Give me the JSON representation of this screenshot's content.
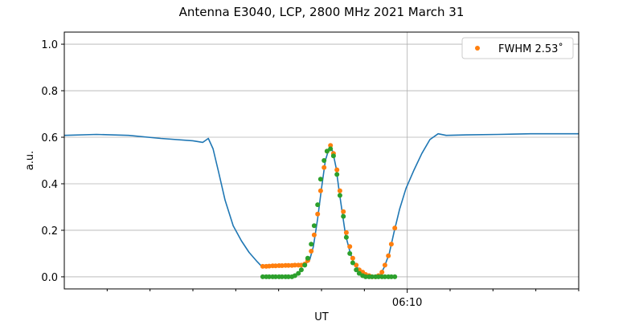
{
  "chart_data": {
    "type": "line",
    "title": "Antenna E3040, LCP, 2800 MHz 2021 March 31",
    "xlabel": "UT",
    "ylabel": "a.u.",
    "xlim_minutes_after_0600": [
      2,
      14
    ],
    "ylim": [
      -0.052,
      1.052
    ],
    "x_major_ticks": [
      {
        "value": 10,
        "label": "06:10"
      }
    ],
    "x_minor_ticks": [
      3,
      4,
      5,
      6,
      7,
      8,
      9,
      11,
      12,
      13,
      14
    ],
    "y_ticks": [
      {
        "value": 0,
        "label": "0.0"
      },
      {
        "value": 0.2,
        "label": "0.2"
      },
      {
        "value": 0.4,
        "label": "0.4"
      },
      {
        "value": 0.6,
        "label": "0.6"
      },
      {
        "value": 0.8,
        "label": "0.8"
      },
      {
        "value": 1.0,
        "label": "1.0"
      }
    ],
    "grid": true,
    "legend": {
      "placement": "top-right",
      "entries": [
        {
          "label": "FWHM 2.53$^\\circ$",
          "display": "FWHM 2.53˚",
          "series": "fit"
        }
      ]
    },
    "series": [
      {
        "name": "data",
        "style": "line",
        "color": "#1f77b4",
        "x": [
          2.0,
          2.75,
          3.5,
          4.25,
          5.0,
          5.23,
          5.36,
          5.47,
          5.6,
          5.75,
          5.94,
          6.13,
          6.31,
          6.5,
          6.63,
          6.88,
          7.25,
          7.59,
          7.72,
          7.81,
          7.91,
          8.0,
          8.09,
          8.19,
          8.26,
          8.34,
          8.41,
          8.49,
          8.56,
          8.66,
          8.75,
          8.88,
          9.03,
          9.22,
          9.35,
          9.46,
          9.58,
          9.69,
          9.82,
          9.97,
          10.16,
          10.34,
          10.53,
          10.72,
          10.91,
          11.38,
          12.13,
          12.88,
          14.0
        ],
        "y": [
          0.608,
          0.612,
          0.608,
          0.595,
          0.585,
          0.578,
          0.595,
          0.55,
          0.45,
          0.33,
          0.22,
          0.155,
          0.105,
          0.065,
          0.04,
          0.045,
          0.048,
          0.05,
          0.07,
          0.13,
          0.25,
          0.38,
          0.5,
          0.56,
          0.54,
          0.47,
          0.37,
          0.27,
          0.18,
          0.11,
          0.06,
          0.03,
          0.01,
          0.0,
          0.0,
          0.04,
          0.1,
          0.19,
          0.29,
          0.38,
          0.46,
          0.53,
          0.59,
          0.615,
          0.608,
          0.61,
          0.612,
          0.615,
          0.615
        ]
      },
      {
        "name": "fit",
        "style": "dots",
        "color": "#ff7f0e",
        "x": [
          6.63,
          6.71,
          6.78,
          6.86,
          6.93,
          7.01,
          7.08,
          7.16,
          7.23,
          7.31,
          7.38,
          7.46,
          7.53,
          7.61,
          7.68,
          7.76,
          7.83,
          7.91,
          7.98,
          8.06,
          8.13,
          8.21,
          8.28,
          8.36,
          8.43,
          8.51,
          8.58,
          8.66,
          8.73,
          8.81,
          8.88,
          8.96,
          9.03,
          9.11,
          9.18,
          9.26,
          9.33,
          9.41,
          9.48,
          9.56,
          9.63,
          9.71
        ],
        "y": [
          0.045,
          0.045,
          0.046,
          0.047,
          0.047,
          0.048,
          0.048,
          0.049,
          0.049,
          0.049,
          0.05,
          0.05,
          0.05,
          0.055,
          0.07,
          0.11,
          0.18,
          0.27,
          0.37,
          0.47,
          0.54,
          0.565,
          0.53,
          0.46,
          0.37,
          0.28,
          0.19,
          0.13,
          0.08,
          0.05,
          0.03,
          0.02,
          0.01,
          0.005,
          0.0,
          0.0,
          0.005,
          0.02,
          0.05,
          0.09,
          0.14,
          0.21
        ]
      },
      {
        "name": "beam",
        "style": "dots",
        "color": "#2ca02c",
        "x": [
          6.63,
          6.71,
          6.78,
          6.86,
          6.93,
          7.01,
          7.08,
          7.16,
          7.23,
          7.31,
          7.38,
          7.46,
          7.53,
          7.61,
          7.68,
          7.76,
          7.83,
          7.91,
          7.98,
          8.06,
          8.13,
          8.21,
          8.28,
          8.36,
          8.43,
          8.51,
          8.58,
          8.66,
          8.73,
          8.81,
          8.88,
          8.96,
          9.03,
          9.11,
          9.18,
          9.26,
          9.33,
          9.41,
          9.48,
          9.56,
          9.63,
          9.71
        ],
        "y": [
          0,
          0,
          0,
          0,
          0,
          0,
          0,
          0,
          0,
          0,
          0.005,
          0.015,
          0.03,
          0.05,
          0.08,
          0.14,
          0.22,
          0.31,
          0.42,
          0.5,
          0.54,
          0.55,
          0.52,
          0.44,
          0.35,
          0.26,
          0.17,
          0.1,
          0.06,
          0.03,
          0.015,
          0.005,
          0,
          0,
          0,
          0,
          0,
          0,
          0,
          0,
          0,
          0
        ]
      }
    ]
  }
}
